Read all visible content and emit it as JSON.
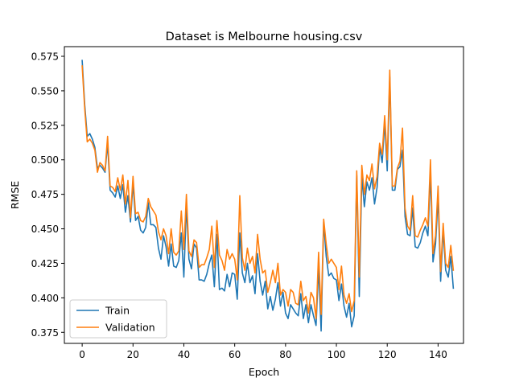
{
  "chart_data": {
    "type": "line",
    "title": "Dataset is Melbourne housing.csv",
    "xlabel": "Epoch",
    "ylabel": "RMSE",
    "xlim": [
      -7,
      150
    ],
    "ylim": [
      0.367,
      0.582
    ],
    "xticks": [
      0,
      20,
      40,
      60,
      80,
      100,
      120,
      140
    ],
    "yticks": [
      0.375,
      0.4,
      0.425,
      0.45,
      0.475,
      0.5,
      0.525,
      0.55,
      0.575
    ],
    "ytick_labels": [
      "0.375",
      "0.400",
      "0.425",
      "0.450",
      "0.475",
      "0.500",
      "0.525",
      "0.550",
      "0.575"
    ],
    "grid": false,
    "legend": "lower-left",
    "series": [
      {
        "name": "Train",
        "color": "#1f77b4",
        "values": [
          0.572,
          0.54,
          0.517,
          0.519,
          0.515,
          0.509,
          0.494,
          0.496,
          0.494,
          0.491,
          0.512,
          0.478,
          0.476,
          0.473,
          0.481,
          0.472,
          0.482,
          0.462,
          0.474,
          0.455,
          0.483,
          0.456,
          0.459,
          0.449,
          0.447,
          0.451,
          0.469,
          0.453,
          0.453,
          0.451,
          0.436,
          0.428,
          0.445,
          0.437,
          0.423,
          0.439,
          0.423,
          0.422,
          0.427,
          0.447,
          0.415,
          0.467,
          0.428,
          0.421,
          0.439,
          0.436,
          0.413,
          0.413,
          0.412,
          0.417,
          0.425,
          0.431,
          0.408,
          0.446,
          0.406,
          0.407,
          0.405,
          0.417,
          0.408,
          0.418,
          0.417,
          0.399,
          0.447,
          0.418,
          0.411,
          0.425,
          0.411,
          0.416,
          0.403,
          0.432,
          0.412,
          0.402,
          0.412,
          0.392,
          0.401,
          0.391,
          0.399,
          0.411,
          0.394,
          0.404,
          0.389,
          0.385,
          0.395,
          0.392,
          0.389,
          0.387,
          0.403,
          0.385,
          0.395,
          0.382,
          0.395,
          0.387,
          0.38,
          0.422,
          0.376,
          0.455,
          0.43,
          0.416,
          0.418,
          0.414,
          0.413,
          0.398,
          0.41,
          0.394,
          0.386,
          0.396,
          0.379,
          0.387,
          0.489,
          0.401,
          0.488,
          0.466,
          0.484,
          0.478,
          0.487,
          0.468,
          0.48,
          0.509,
          0.498,
          0.527,
          0.492,
          0.56,
          0.478,
          0.478,
          0.493,
          0.495,
          0.507,
          0.459,
          0.446,
          0.445,
          0.465,
          0.437,
          0.436,
          0.44,
          0.447,
          0.452,
          0.445,
          0.49,
          0.426,
          0.439,
          0.473,
          0.412,
          0.449,
          0.42,
          0.415,
          0.43,
          0.407
        ]
      },
      {
        "name": "Validation",
        "color": "#ff7f0e",
        "values": [
          0.568,
          0.537,
          0.513,
          0.515,
          0.512,
          0.507,
          0.491,
          0.498,
          0.496,
          0.492,
          0.517,
          0.481,
          0.48,
          0.477,
          0.487,
          0.478,
          0.489,
          0.468,
          0.485,
          0.458,
          0.488,
          0.461,
          0.462,
          0.456,
          0.455,
          0.459,
          0.472,
          0.466,
          0.463,
          0.46,
          0.448,
          0.442,
          0.45,
          0.445,
          0.432,
          0.45,
          0.433,
          0.431,
          0.434,
          0.463,
          0.435,
          0.475,
          0.434,
          0.43,
          0.442,
          0.44,
          0.422,
          0.424,
          0.424,
          0.429,
          0.435,
          0.452,
          0.422,
          0.456,
          0.431,
          0.427,
          0.42,
          0.435,
          0.428,
          0.432,
          0.428,
          0.413,
          0.474,
          0.429,
          0.42,
          0.436,
          0.425,
          0.43,
          0.418,
          0.446,
          0.428,
          0.418,
          0.42,
          0.404,
          0.411,
          0.42,
          0.411,
          0.425,
          0.402,
          0.406,
          0.404,
          0.394,
          0.406,
          0.404,
          0.396,
          0.395,
          0.412,
          0.398,
          0.401,
          0.389,
          0.404,
          0.4,
          0.385,
          0.433,
          0.388,
          0.457,
          0.439,
          0.425,
          0.428,
          0.425,
          0.422,
          0.406,
          0.423,
          0.402,
          0.396,
          0.403,
          0.39,
          0.398,
          0.492,
          0.415,
          0.496,
          0.475,
          0.489,
          0.485,
          0.497,
          0.479,
          0.488,
          0.512,
          0.504,
          0.532,
          0.5,
          0.565,
          0.481,
          0.481,
          0.494,
          0.499,
          0.523,
          0.465,
          0.452,
          0.449,
          0.474,
          0.445,
          0.444,
          0.449,
          0.453,
          0.458,
          0.452,
          0.5,
          0.432,
          0.445,
          0.481,
          0.419,
          0.454,
          0.425,
          0.422,
          0.438,
          0.42
        ]
      }
    ]
  }
}
